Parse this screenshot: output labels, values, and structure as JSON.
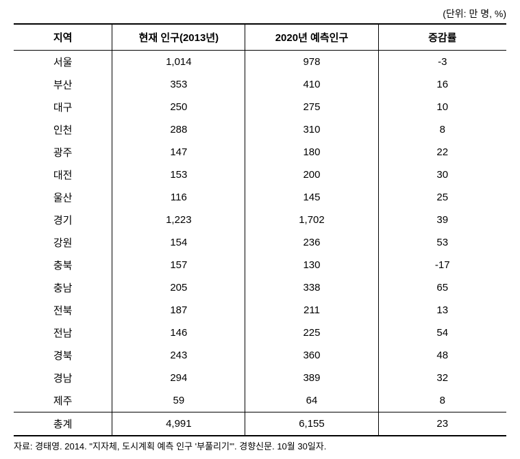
{
  "unit_label": "(단위: 만 명, %)",
  "columns": [
    "지역",
    "현재 인구(2013년)",
    "2020년 예측인구",
    "증감률"
  ],
  "rows": [
    {
      "region": "서울",
      "current": "1,014",
      "forecast": "978",
      "change": "-3"
    },
    {
      "region": "부산",
      "current": "353",
      "forecast": "410",
      "change": "16"
    },
    {
      "region": "대구",
      "current": "250",
      "forecast": "275",
      "change": "10"
    },
    {
      "region": "인천",
      "current": "288",
      "forecast": "310",
      "change": "8"
    },
    {
      "region": "광주",
      "current": "147",
      "forecast": "180",
      "change": "22"
    },
    {
      "region": "대전",
      "current": "153",
      "forecast": "200",
      "change": "30"
    },
    {
      "region": "울산",
      "current": "116",
      "forecast": "145",
      "change": "25"
    },
    {
      "region": "경기",
      "current": "1,223",
      "forecast": "1,702",
      "change": "39"
    },
    {
      "region": "강원",
      "current": "154",
      "forecast": "236",
      "change": "53"
    },
    {
      "region": "충북",
      "current": "157",
      "forecast": "130",
      "change": "-17"
    },
    {
      "region": "충남",
      "current": "205",
      "forecast": "338",
      "change": "65"
    },
    {
      "region": "전북",
      "current": "187",
      "forecast": "211",
      "change": "13"
    },
    {
      "region": "전남",
      "current": "146",
      "forecast": "225",
      "change": "54"
    },
    {
      "region": "경북",
      "current": "243",
      "forecast": "360",
      "change": "48"
    },
    {
      "region": "경남",
      "current": "294",
      "forecast": "389",
      "change": "32"
    },
    {
      "region": "제주",
      "current": "59",
      "forecast": "64",
      "change": "8"
    }
  ],
  "total_row": {
    "region": "총계",
    "current": "4,991",
    "forecast": "6,155",
    "change": "23"
  },
  "source": "자료: 경태영. 2014. \"지자체, 도시계획 예측 인구 '부풀리기'\". 경향신문. 10월 30일자."
}
